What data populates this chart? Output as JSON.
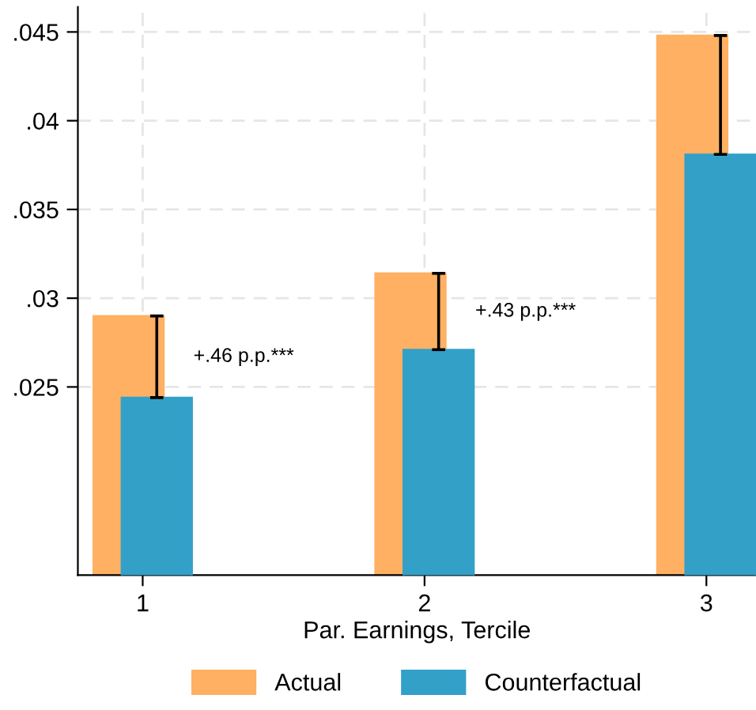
{
  "chart_data": {
    "type": "bar",
    "xlabel": "Par. Earnings, Tercile",
    "xlim": [
      0.77,
      3.176
    ],
    "xticks": [
      1,
      2,
      3
    ],
    "ylim": [
      0.0144,
      0.0464
    ],
    "yticks": [
      {
        "value": 0.025,
        "label": ".025"
      },
      {
        "value": 0.03,
        "label": ".03"
      },
      {
        "value": 0.035,
        "label": ".035"
      },
      {
        "value": 0.04,
        "label": ".04"
      },
      {
        "value": 0.045,
        "label": ".045"
      }
    ],
    "series": [
      {
        "name": "Actual",
        "color": "#ffb062",
        "x": [
          0.95,
          1.95,
          2.95
        ],
        "values": [
          0.029,
          0.0314,
          0.0448
        ]
      },
      {
        "name": "Counterfactual",
        "color": "#33a0c8",
        "x": [
          1.05,
          2.05,
          3.05
        ],
        "values": [
          0.0244,
          0.0271,
          0.0381
        ],
        "errors": [
          [
            0.0244,
            0.029
          ],
          [
            0.0271,
            0.0314
          ],
          [
            0.0381,
            0.0448
          ]
        ]
      }
    ],
    "annotations": [
      "+.46 p.p.***",
      "+.43 p.p.***"
    ],
    "grid": true,
    "legend": "bottom"
  }
}
